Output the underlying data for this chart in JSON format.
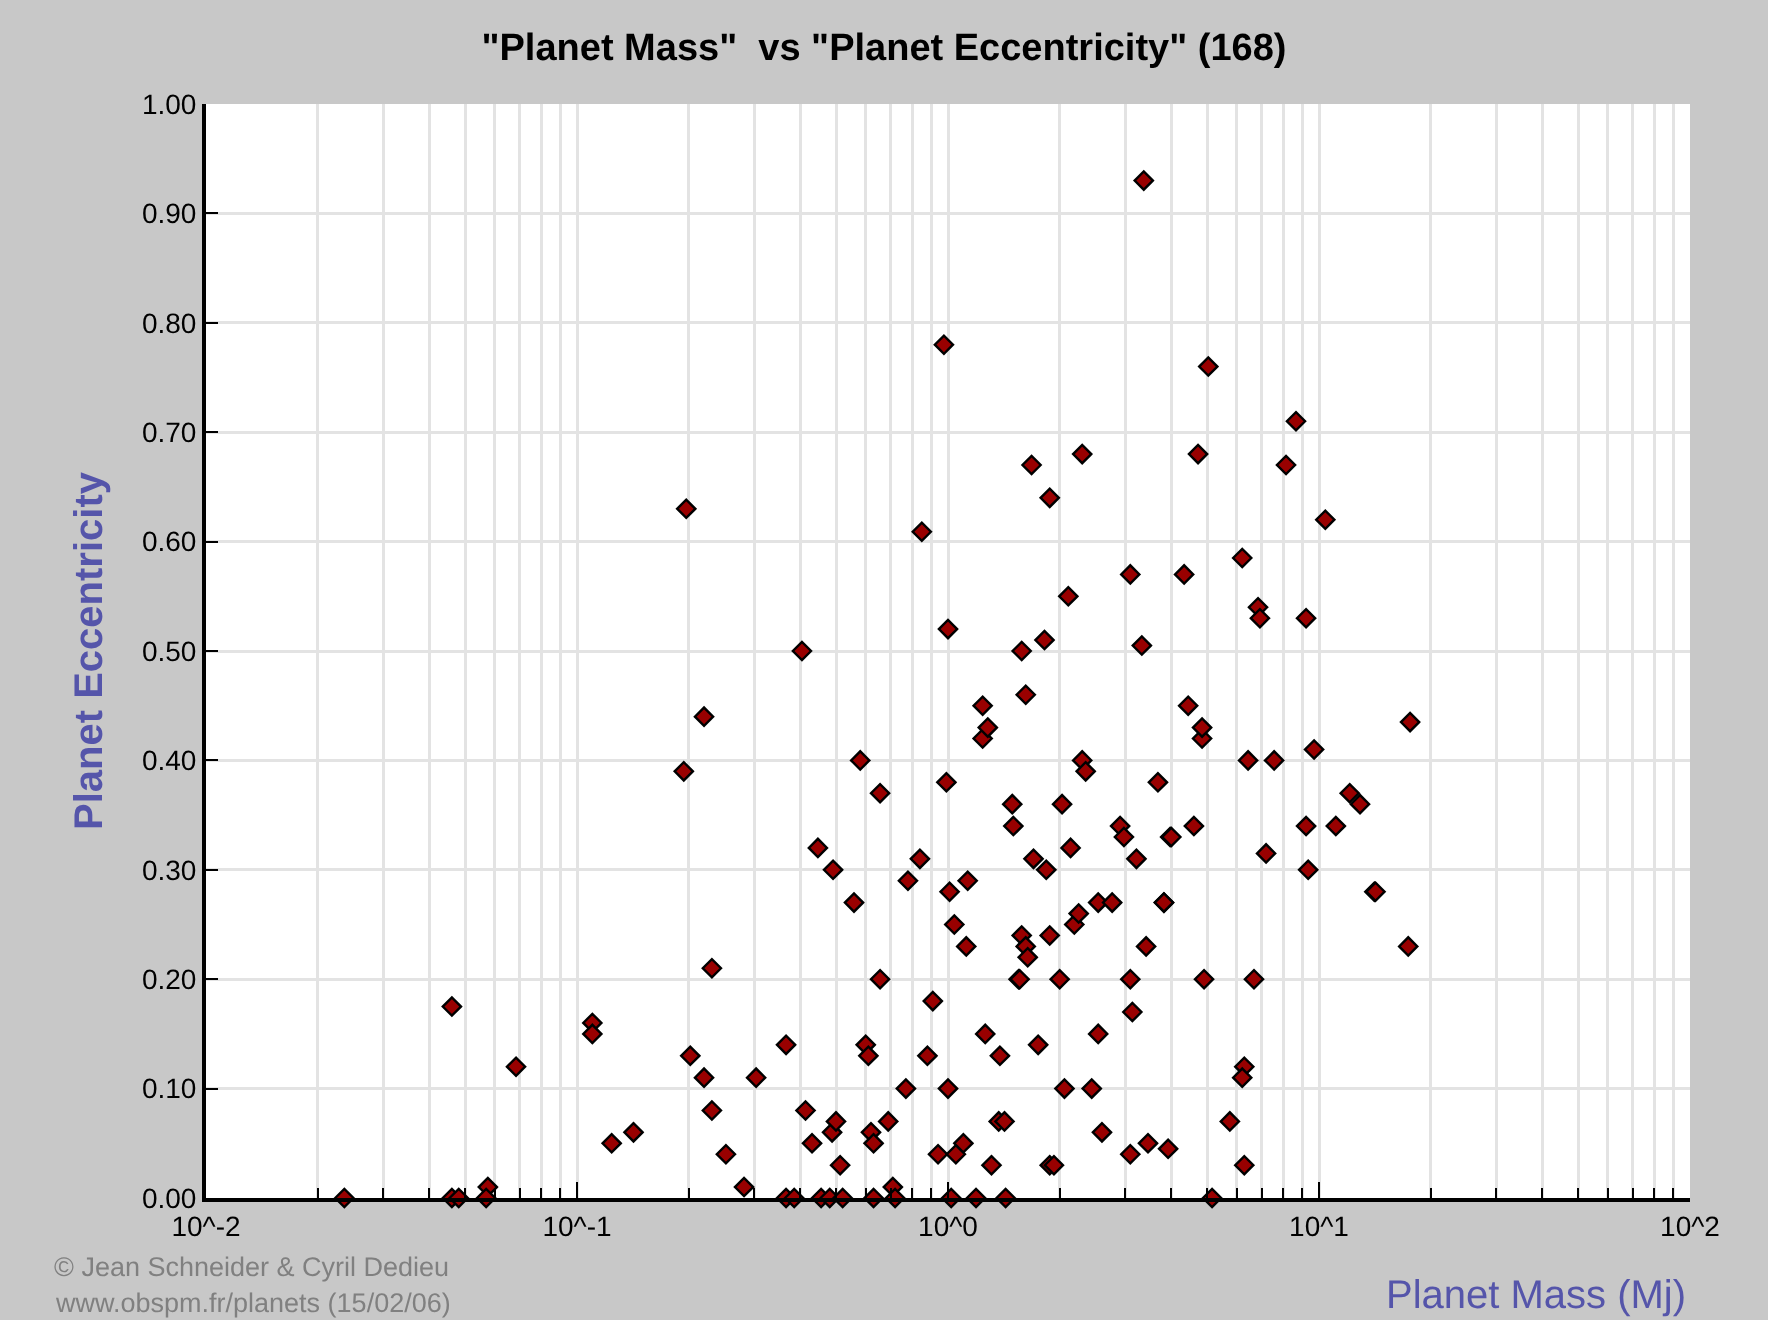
{
  "chart_data": {
    "type": "scatter",
    "title": "\"Planet Mass\"  vs \"Planet Eccentricity\" (168)",
    "xlabel": "Planet Mass (Mj)",
    "ylabel": "Planet Eccentricity",
    "annotations": [
      "© Jean Schneider & Cyril Dedieu",
      "www.obspm.fr/planets (15/02/06)"
    ],
    "log": "x",
    "grid": true,
    "marker": "diamond",
    "xlim": [
      0.01,
      100
    ],
    "xticks": [
      {
        "value": 0.01,
        "label": "10^-2"
      },
      {
        "value": 0.1,
        "label": "10^-1"
      },
      {
        "value": 1,
        "label": "10^0"
      },
      {
        "value": 10,
        "label": "10^1"
      },
      {
        "value": 100,
        "label": "10^2"
      }
    ],
    "ylim": [
      0,
      1
    ],
    "yticks": [
      {
        "value": 0,
        "label": "0.00"
      },
      {
        "value": 0.1,
        "label": "0.10"
      },
      {
        "value": 0.2,
        "label": "0.20"
      },
      {
        "value": 0.3,
        "label": "0.30"
      },
      {
        "value": 0.4,
        "label": "0.40"
      },
      {
        "value": 0.5,
        "label": "0.50"
      },
      {
        "value": 0.6,
        "label": "0.60"
      },
      {
        "value": 0.7,
        "label": "0.70"
      },
      {
        "value": 0.8,
        "label": "0.80"
      },
      {
        "value": 0.9,
        "label": "0.90"
      },
      {
        "value": 1,
        "label": "1.00"
      }
    ],
    "series": [
      {
        "color": "#990000",
        "x": [
          0.0236,
          0.046,
          0.046,
          0.048,
          0.0575,
          0.0569,
          0.0685,
          0.11,
          0.11,
          0.124,
          0.142,
          0.197,
          0.194,
          0.202,
          0.22,
          0.22,
          0.231,
          0.231,
          0.252,
          0.282,
          0.304,
          0.366,
          0.366,
          0.385,
          0.404,
          0.413,
          0.43,
          0.446,
          0.49,
          0.455,
          0.48,
          0.487,
          0.499,
          0.512,
          0.52,
          0.558,
          0.58,
          0.6,
          0.61,
          0.62,
          0.63,
          0.63,
          0.656,
          0.656,
          0.69,
          0.71,
          0.72,
          0.77,
          0.78,
          0.85,
          0.84,
          0.88,
          0.91,
          0.94,
          0.975,
          0.99,
          1.0,
          1.01,
          1.0,
          1.02,
          1.04,
          1.05,
          1.1,
          1.13,
          1.12,
          1.19,
          1.24,
          1.24,
          1.28,
          1.26,
          1.31,
          1.37,
          1.42,
          1.38,
          1.43,
          1.49,
          1.5,
          1.55,
          1.56,
          1.58,
          1.62,
          1.64,
          1.58,
          1.62,
          1.68,
          1.7,
          1.75,
          1.82,
          1.84,
          1.88,
          1.88,
          1.88,
          1.93,
          2.0,
          2.03,
          2.06,
          2.11,
          2.14,
          2.19,
          2.25,
          2.3,
          2.3,
          2.35,
          2.44,
          2.54,
          2.6,
          2.54,
          2.77,
          2.91,
          2.98,
          3.1,
          3.1,
          3.1,
          3.14,
          3.22,
          3.37,
          3.33,
          3.42,
          3.46,
          3.68,
          3.82,
          3.82,
          3.97,
          4.0,
          3.92,
          4.33,
          4.44,
          4.6,
          4.72,
          4.84,
          4.84,
          4.9,
          5.15,
          5.03,
          5.75,
          6.21,
          6.29,
          6.21,
          6.29,
          6.44,
          6.68,
          6.85,
          6.93,
          7.2,
          7.57,
          8.15,
          8.67,
          9.23,
          9.23,
          9.35,
          9.7,
          10.4,
          11.1,
          12.1,
          12.9,
          14.1,
          14.2,
          17.6,
          17.4
        ],
        "values": [
          0,
          0.175,
          0,
          0,
          0.01,
          0,
          0.12,
          0.16,
          0.15,
          0.05,
          0.06,
          0.63,
          0.39,
          0.13,
          0.44,
          0.11,
          0.21,
          0.08,
          0.04,
          0.01,
          0.11,
          0.14,
          0,
          0,
          0.5,
          0.08,
          0.05,
          0.32,
          0.3,
          0,
          0,
          0.06,
          0.07,
          0.03,
          0,
          0.27,
          0.4,
          0.14,
          0.13,
          0.06,
          0.05,
          0,
          0.37,
          0.2,
          0.07,
          0.01,
          0,
          0.1,
          0.29,
          0.609,
          0.31,
          0.13,
          0.18,
          0.04,
          0.78,
          0.38,
          0.52,
          0.28,
          0.1,
          0,
          0.25,
          0.04,
          0.05,
          0.29,
          0.23,
          0,
          0.42,
          0.45,
          0.43,
          0.15,
          0.03,
          0.07,
          0.07,
          0.13,
          0,
          0.36,
          0.34,
          0.2,
          0.2,
          0.24,
          0.23,
          0.22,
          0.5,
          0.46,
          0.67,
          0.31,
          0.14,
          0.51,
          0.3,
          0.64,
          0.24,
          0.03,
          0.03,
          0.2,
          0.36,
          0.1,
          0.55,
          0.32,
          0.25,
          0.26,
          0.68,
          0.4,
          0.39,
          0.1,
          0.15,
          0.06,
          0.27,
          0.27,
          0.34,
          0.33,
          0.57,
          0.2,
          0.04,
          0.17,
          0.31,
          0.93,
          0.505,
          0.23,
          0.05,
          0.38,
          0.27,
          0.27,
          0.33,
          0.33,
          0.045,
          0.57,
          0.45,
          0.34,
          0.68,
          0.42,
          0.43,
          0.2,
          0,
          0.76,
          0.07,
          0.585,
          0.12,
          0.11,
          0.03,
          0.4,
          0.2,
          0.54,
          0.53,
          0.315,
          0.4,
          0.67,
          0.71,
          0.53,
          0.34,
          0.3,
          0.41,
          0.62,
          0.34,
          0.37,
          0.36,
          0.28,
          0.28,
          0.435,
          0.23
        ]
      }
    ]
  }
}
